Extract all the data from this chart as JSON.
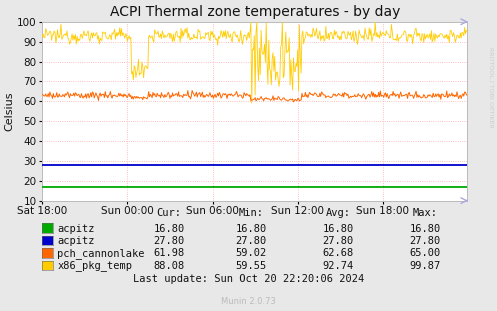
{
  "title": "ACPI Thermal zone temperatures - by day",
  "ylabel": "Celsius",
  "background_color": "#e8e8e8",
  "plot_bg_color": "#ffffff",
  "ylim": [
    10,
    100
  ],
  "yticks": [
    10,
    20,
    30,
    40,
    50,
    60,
    70,
    80,
    90,
    100
  ],
  "xtick_labels": [
    "Sat 18:00",
    "Sun 00:00",
    "Sun 06:00",
    "Sun 12:00",
    "Sun 18:00"
  ],
  "grid_color": "#ffaaaa",
  "grid_style": ":",
  "acpitz_green_val": 16.8,
  "acpitz_blue_val": 27.8,
  "acpitz_green_color": "#00aa00",
  "acpitz_blue_color": "#0000cc",
  "pch_color": "#ff6600",
  "x86_color": "#ffcc00",
  "legend_data": [
    {
      "color": "#00aa00",
      "label": "acpitz",
      "cur": "16.80",
      "min": "16.80",
      "avg": "16.80",
      "max": "16.80"
    },
    {
      "color": "#0000cc",
      "label": "acpitz",
      "cur": "27.80",
      "min": "27.80",
      "avg": "27.80",
      "max": "27.80"
    },
    {
      "color": "#ff6600",
      "label": "pch_cannonlake",
      "cur": "61.98",
      "min": "59.02",
      "avg": "62.68",
      "max": "65.00"
    },
    {
      "color": "#ffcc00",
      "label": "x86_pkg_temp",
      "cur": "88.08",
      "min": "59.55",
      "avg": "92.74",
      "max": "99.87"
    }
  ],
  "watermark": "Munin 2.0.73",
  "last_update": "Last update: Sun Oct 20 22:20:06 2024",
  "rrdtool_text": "RRDTOOL / TOBI OETIKER",
  "title_fontsize": 10,
  "axis_fontsize": 7.5,
  "legend_fontsize": 7.5
}
